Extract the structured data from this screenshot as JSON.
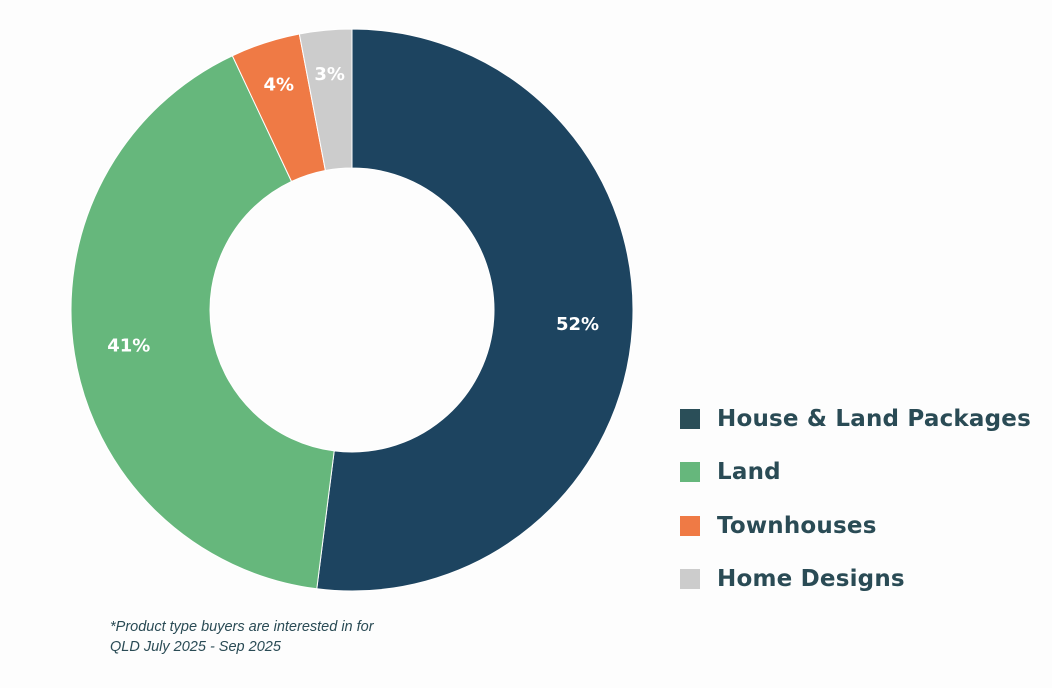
{
  "chart_data": {
    "type": "pie",
    "variant": "donut",
    "categories": [
      "House & Land Packages",
      "Land",
      "Townhouses",
      "Home Designs"
    ],
    "values": [
      52,
      41,
      4,
      3
    ],
    "value_labels": [
      "52%",
      "41%",
      "4%",
      "3%"
    ],
    "colors": [
      "#1d4460",
      "#66b77c",
      "#ef7a45",
      "#cccccc"
    ],
    "legend_colors": [
      "#2a4e58",
      "#66b77c",
      "#ef7a45",
      "#cccccc"
    ],
    "legend_position": "right",
    "start": "top",
    "direction": "clockwise"
  },
  "footnote": {
    "line1": "*Product type buyers are interested in for",
    "line2": "QLD July 2025 - Sep 2025"
  }
}
